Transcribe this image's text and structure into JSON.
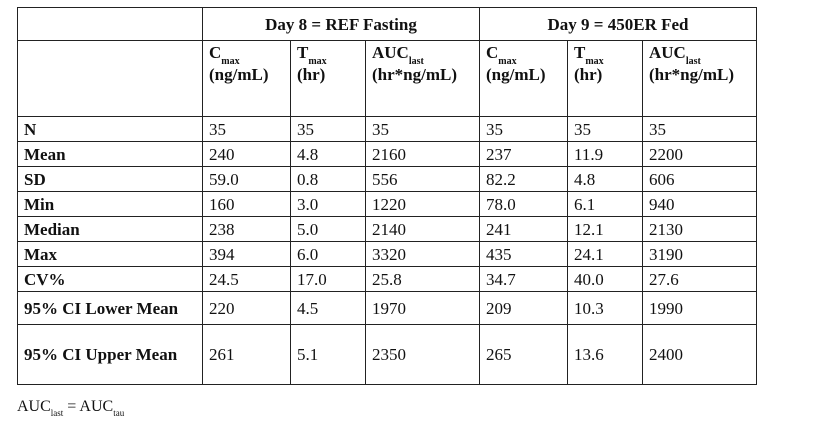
{
  "group_headers": [
    "Day 8 = REF Fasting",
    "Day 9 = 450ER Fed"
  ],
  "columns": [
    {
      "main": "C",
      "sub": "max",
      "unit": "(ng/mL)"
    },
    {
      "main": "T",
      "sub": "max",
      "unit": "(hr)"
    },
    {
      "main": "AUC",
      "sub": "last",
      "unit": "(hr*ng/mL)"
    },
    {
      "main": "C",
      "sub": "max",
      "unit": "(ng/mL)"
    },
    {
      "main": "T",
      "sub": "max",
      "unit": "(hr)"
    },
    {
      "main": "AUC",
      "sub": "last",
      "unit": "(hr*ng/mL)"
    }
  ],
  "rows": [
    {
      "label": "N",
      "values": [
        "35",
        "35",
        "35",
        "35",
        "35",
        "35"
      ]
    },
    {
      "label": "Mean",
      "values": [
        "240",
        "4.8",
        "2160",
        "237",
        "11.9",
        "2200"
      ]
    },
    {
      "label": "SD",
      "values": [
        "59.0",
        "0.8",
        "556",
        "82.2",
        "4.8",
        "606"
      ]
    },
    {
      "label": "Min",
      "values": [
        "160",
        "3.0",
        "1220",
        "78.0",
        "6.1",
        "940"
      ]
    },
    {
      "label": "Median",
      "values": [
        "238",
        "5.0",
        "2140",
        "241",
        "12.1",
        "2130"
      ]
    },
    {
      "label": "Max",
      "values": [
        "394",
        "6.0",
        "3320",
        "435",
        "24.1",
        "3190"
      ]
    },
    {
      "label": "CV%",
      "values": [
        "24.5",
        "17.0",
        "25.8",
        "34.7",
        "40.0",
        "27.6"
      ]
    },
    {
      "label": "95% CI Lower Mean",
      "values": [
        "220",
        "4.5",
        "1970",
        "209",
        "10.3",
        "1990"
      ]
    },
    {
      "label": "95% CI Upper Mean",
      "values": [
        "261",
        "5.1",
        "2350",
        "265",
        "13.6",
        "2400"
      ]
    }
  ],
  "footnote": {
    "lhs": "AUC",
    "lhs_sub": "last",
    "eq": " = ",
    "rhs": "AUC",
    "rhs_sub": "tau"
  }
}
